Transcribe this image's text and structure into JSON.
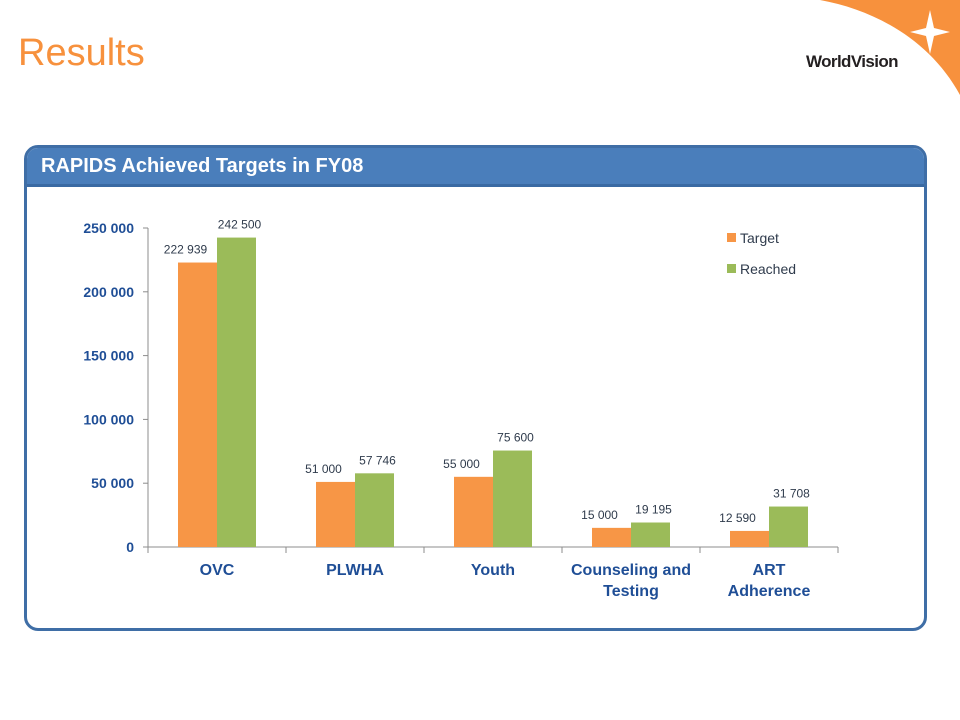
{
  "page": {
    "title": "Results",
    "brand": "WorldVision"
  },
  "panel": {
    "title": "RAPIDS Achieved Targets in FY08"
  },
  "colors": {
    "title": "#f7913d",
    "panel_header": "#4a7ebb",
    "target": "#f79646",
    "reached": "#9bbb59",
    "axis_text": "#1f4e96"
  },
  "chart_data": {
    "type": "bar",
    "title": "RAPIDS Achieved Targets in FY08",
    "categories": [
      [
        "OVC"
      ],
      [
        "PLWHA"
      ],
      [
        "Youth"
      ],
      [
        "Counseling and",
        "Testing"
      ],
      [
        "ART",
        "Adherence"
      ]
    ],
    "series": [
      {
        "name": "Target",
        "color": "#f79646",
        "values": [
          222939,
          51000,
          55000,
          15000,
          12590
        ],
        "labels": [
          "222 939",
          "51 000",
          "55 000",
          "15 000",
          "12 590"
        ]
      },
      {
        "name": "Reached",
        "color": "#9bbb59",
        "values": [
          242500,
          57746,
          75600,
          19195,
          31708
        ],
        "labels": [
          "242 500",
          "57 746",
          "75 600",
          "19 195",
          "31 708"
        ]
      }
    ],
    "ylim": [
      0,
      250000
    ],
    "yticks": [
      0,
      50000,
      100000,
      150000,
      200000,
      250000
    ],
    "ytick_labels": [
      "0",
      "50 000",
      "100 000",
      "150 000",
      "200 000",
      "250 000"
    ],
    "xlabel": "",
    "ylabel": "",
    "grid": false,
    "legend": "top-right"
  }
}
